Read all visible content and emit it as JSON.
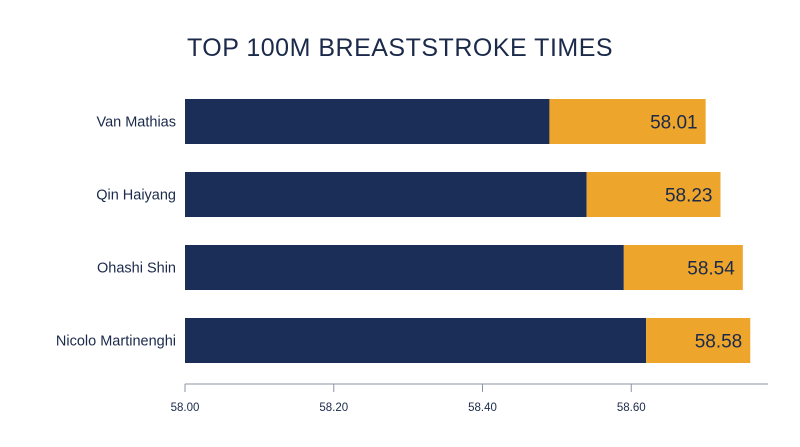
{
  "chart_data": {
    "type": "bar",
    "orientation": "horizontal",
    "title": "TOP 100M BREASTSTROKE TIMES",
    "xlabel": "",
    "ylabel": "",
    "categories": [
      "Van Mathias",
      "Qin Haiyang",
      "Ohashi Shin",
      "Nicolo Martinenghi"
    ],
    "values": [
      58.01,
      58.23,
      58.54,
      58.58
    ],
    "value_labels": [
      "58.01",
      "58.23",
      "58.54",
      "58.58"
    ],
    "segments": [
      {
        "values": [
          58.49,
          58.54,
          58.59,
          58.62
        ]
      },
      {
        "values": [
          58.7,
          58.72,
          58.75,
          58.76
        ]
      }
    ],
    "xlim": [
      58.0,
      58.8
    ],
    "xticks": [
      58.0,
      58.2,
      58.4,
      58.6
    ],
    "xtick_labels": [
      "58.00",
      "58.20",
      "58.40",
      "58.60"
    ],
    "grid": false,
    "colors": {
      "primary": "#1b2e57",
      "accent": "#eea52b",
      "text": "#1b2a4a",
      "axis": "#8a93a6"
    }
  }
}
